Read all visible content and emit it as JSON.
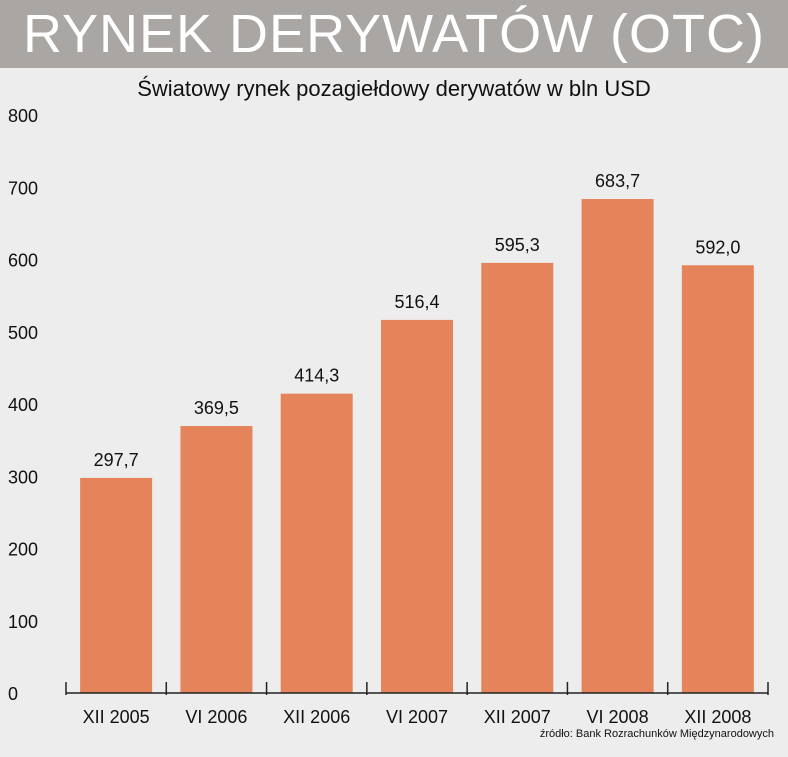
{
  "header": {
    "title": "RYNEK DERYWATÓW (OTC)",
    "subtitle": "Światowy rynek pozagiełdowy derywatów w bln USD",
    "source": "źródło: Bank Rozrachunków Międzynarodowych"
  },
  "colors": {
    "banner": "#a9a6a4",
    "background": "#ededed",
    "bar": "#e5845a"
  },
  "chart_data": {
    "type": "bar",
    "title": "Światowy rynek pozagiełdowy derywatów w bln USD",
    "categories": [
      "XII 2005",
      "VI 2006",
      "XII 2006",
      "VI 2007",
      "XII 2007",
      "VI 2008",
      "XII 2008"
    ],
    "values": [
      297.7,
      369.5,
      414.3,
      516.4,
      595.3,
      683.7,
      592.0
    ],
    "value_labels": [
      "297,7",
      "369,5",
      "414,3",
      "516,4",
      "595,3",
      "683,7",
      "592,0"
    ],
    "ylim": [
      0,
      800
    ],
    "yticks": [
      0,
      100,
      200,
      300,
      400,
      500,
      600,
      700,
      800
    ],
    "grid": false,
    "legend": "none"
  }
}
